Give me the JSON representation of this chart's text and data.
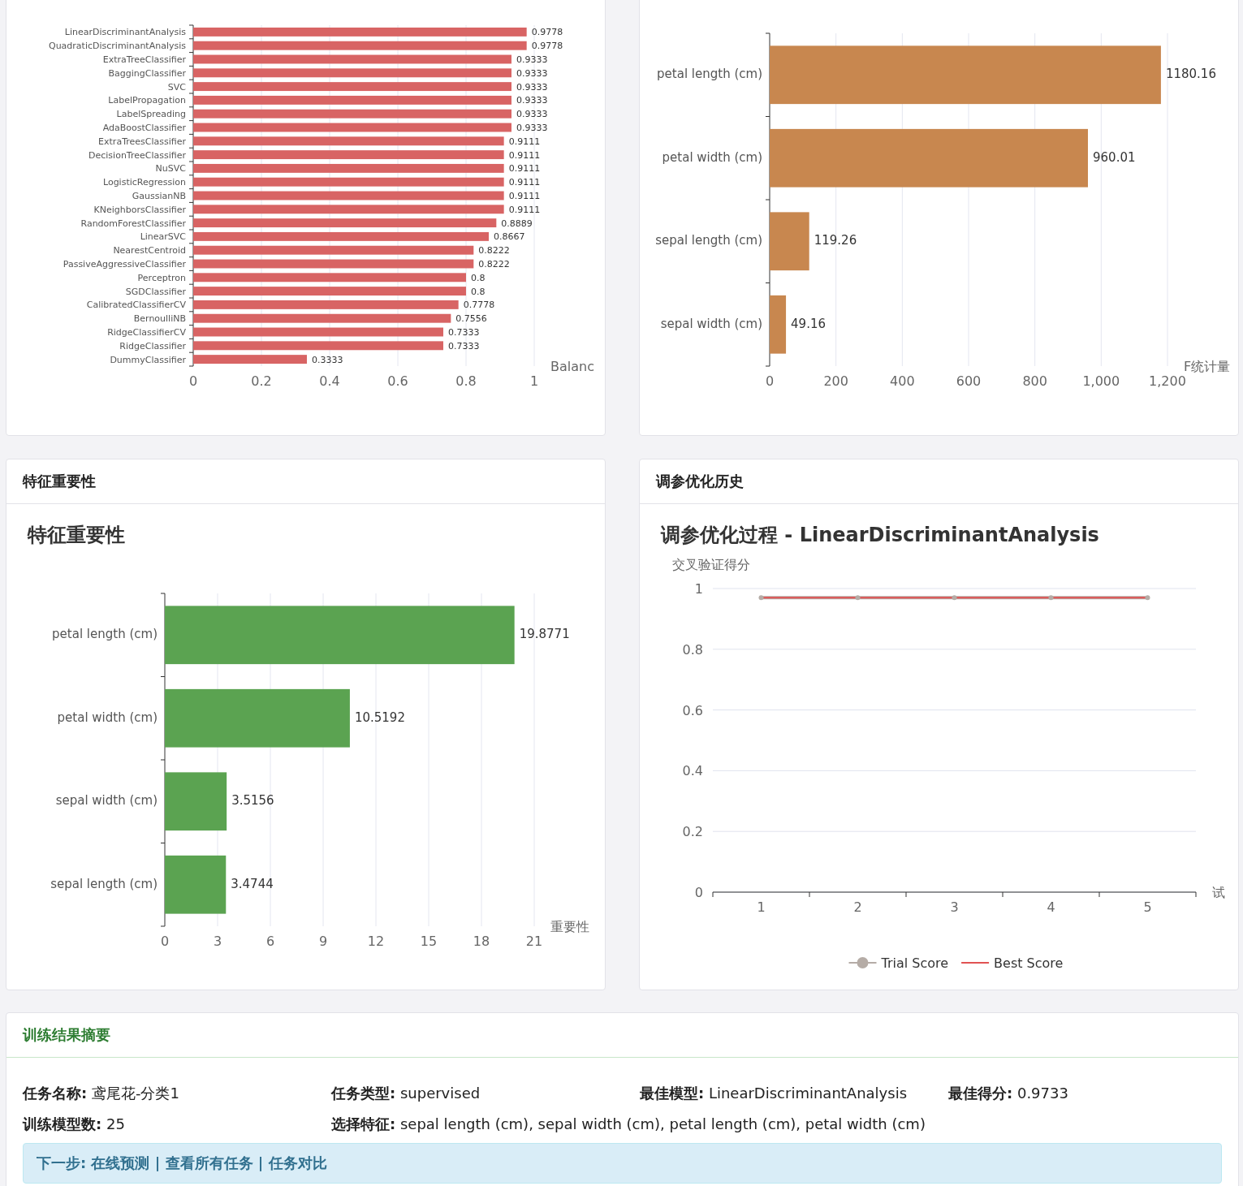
{
  "chart_data": [
    {
      "type": "bar",
      "orientation": "horizontal",
      "categories": [
        "LinearDiscriminantAnalysis",
        "QuadraticDiscriminantAnalysis",
        "ExtraTreeClassifier",
        "BaggingClassifier",
        "SVC",
        "LabelPropagation",
        "LabelSpreading",
        "AdaBoostClassifier",
        "ExtraTreesClassifier",
        "DecisionTreeClassifier",
        "NuSVC",
        "LogisticRegression",
        "GaussianNB",
        "KNeighborsClassifier",
        "RandomForestClassifier",
        "LinearSVC",
        "NearestCentroid",
        "PassiveAggressiveClassifier",
        "Perceptron",
        "SGDClassifier",
        "CalibratedClassifierCV",
        "BernoulliNB",
        "RidgeClassifierCV",
        "RidgeClassifier",
        "DummyClassifier"
      ],
      "values": [
        0.9778,
        0.9778,
        0.9333,
        0.9333,
        0.9333,
        0.9333,
        0.9333,
        0.9333,
        0.9111,
        0.9111,
        0.9111,
        0.9111,
        0.9111,
        0.9111,
        0.8889,
        0.8667,
        0.8222,
        0.8222,
        0.8,
        0.8,
        0.7778,
        0.7556,
        0.7333,
        0.7333,
        0.3333
      ],
      "color": "#d86464",
      "xlim": [
        0,
        1
      ],
      "xticks": [
        0,
        0.2,
        0.4,
        0.6,
        0.8,
        1
      ],
      "xlabel": "Balanc",
      "data_labels": true,
      "grid": "x"
    },
    {
      "type": "bar",
      "orientation": "horizontal",
      "categories": [
        "petal length (cm)",
        "petal width (cm)",
        "sepal length (cm)",
        "sepal width (cm)"
      ],
      "values": [
        1180.16,
        960.01,
        119.26,
        49.16
      ],
      "color": "#c8874f",
      "xlim": [
        0,
        1200
      ],
      "xticks": [
        0,
        200,
        400,
        600,
        800,
        {
          "value": 1000,
          "label": "1,000"
        },
        {
          "value": 1200,
          "label": "1,200"
        }
      ],
      "xlabel": "F统计量",
      "data_labels": true,
      "grid": "x"
    },
    {
      "type": "bar",
      "orientation": "horizontal",
      "title": "特征重要性",
      "subtitle": "特征重要性",
      "categories": [
        "petal length (cm)",
        "petal width (cm)",
        "sepal width (cm)",
        "sepal length (cm)"
      ],
      "values": [
        19.8771,
        10.5192,
        3.5156,
        3.4744
      ],
      "color": "#5ba351",
      "xlim": [
        0,
        21
      ],
      "xticks": [
        0,
        3,
        6,
        9,
        12,
        15,
        18,
        21
      ],
      "xlabel": "重要性",
      "data_labels": true,
      "grid": "x"
    },
    {
      "type": "line",
      "title": "调参优化历史",
      "subtitle": "调参优化过程 - LinearDiscriminantAnalysis",
      "categories": [
        "1",
        "2",
        "3",
        "4",
        "5"
      ],
      "series": [
        {
          "name": "Trial Score",
          "color": "#b5aca6",
          "values": [
            0.97,
            0.97,
            0.97,
            0.97,
            0.97
          ],
          "marker": "circle"
        },
        {
          "name": "Best Score",
          "color": "#e05252",
          "values": [
            0.97,
            0.97,
            0.97,
            0.97,
            0.97
          ],
          "marker": "none"
        }
      ],
      "ylim": [
        0,
        1
      ],
      "yticks": [
        0,
        0.2,
        0.4,
        0.6,
        0.8,
        1
      ],
      "ylabel": "交叉验证得分",
      "xlabel": "试",
      "grid": "y",
      "legend": "bottom"
    },
    {
      "type": "other",
      "title": "训练结果摘要",
      "annotations": [
        "任务名称: 鸢尾花-分类1",
        "任务类型: supervised",
        "最佳模型: LinearDiscriminantAnalysis",
        "最佳得分: 0.9733",
        "训练模型数: 25",
        "选择特征: sepal length (cm), sepal width (cm), petal length (cm), petal width (cm)",
        "下一步: 在线预测 | 查看所有任务 | 任务对比"
      ]
    }
  ]
}
